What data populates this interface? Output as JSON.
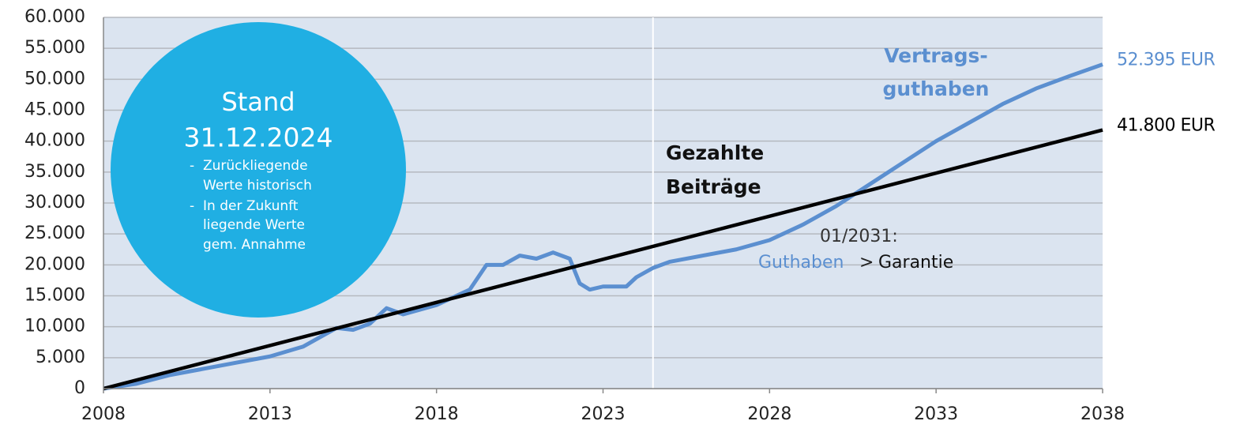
{
  "chart_data": {
    "type": "line",
    "series": [
      {
        "name": "Vertragsguthaben",
        "color": "#5b8fd0",
        "x": [
          2008,
          2009,
          2010,
          2011,
          2012,
          2013,
          2014,
          2015,
          2015.5,
          2016,
          2016.5,
          2017,
          2018,
          2019,
          2019.5,
          2020,
          2020.5,
          2021,
          2021.5,
          2022,
          2022.3,
          2022.6,
          2023,
          2023.7,
          2024,
          2024.5,
          2025,
          2026,
          2027,
          2028,
          2029,
          2030,
          2031,
          2032,
          2033,
          2034,
          2035,
          2036,
          2037,
          2038
        ],
        "values": [
          0,
          800,
          2200,
          3200,
          4200,
          5200,
          6800,
          9800,
          9500,
          10500,
          13000,
          12000,
          13500,
          16000,
          20000,
          20000,
          21500,
          21000,
          22000,
          21000,
          17000,
          16000,
          16500,
          16500,
          18000,
          19500,
          20500,
          21500,
          22500,
          24000,
          26500,
          29500,
          33000,
          36500,
          40000,
          43000,
          46000,
          48500,
          50500,
          52395
        ],
        "value_labels": [
          null,
          null,
          null,
          null,
          null,
          null,
          null,
          null,
          null,
          null,
          null,
          null,
          null,
          null,
          null,
          null,
          null,
          null,
          null,
          null,
          null,
          null,
          null,
          null,
          null,
          null,
          null,
          null,
          null,
          null,
          null,
          null,
          null,
          null,
          null,
          null,
          null,
          null,
          null,
          "52.395 EUR"
        ]
      },
      {
        "name": "Gezahlte Beiträge",
        "color": "#000000",
        "x": [
          2008,
          2038
        ],
        "values": [
          0,
          41800
        ],
        "value_labels": [
          null,
          "41.800 EUR"
        ]
      }
    ],
    "xlim": [
      2008,
      2038
    ],
    "xticks": [
      2008,
      2013,
      2018,
      2023,
      2028,
      2033,
      2038
    ],
    "ylim": [
      0,
      60000
    ],
    "yticks": [
      {
        "value": 0,
        "label": "0"
      },
      {
        "value": 5000,
        "label": "5.000"
      },
      {
        "value": 10000,
        "label": "10.000"
      },
      {
        "value": 15000,
        "label": "15.000"
      },
      {
        "value": 20000,
        "label": "20.000"
      },
      {
        "value": 25000,
        "label": "25.000"
      },
      {
        "value": 30000,
        "label": "30.000"
      },
      {
        "value": 35000,
        "label": "35.000"
      },
      {
        "value": 40000,
        "label": "40.000"
      },
      {
        "value": 45000,
        "label": "45.000"
      },
      {
        "value": 50000,
        "label": "50.000"
      },
      {
        "value": 55000,
        "label": "55.000"
      },
      {
        "value": 60000,
        "label": "60.000"
      }
    ],
    "grid": true,
    "vline": 2024.5,
    "annotations": {
      "stand": {
        "title": "Stand",
        "date": "31.12.2024",
        "notes": [
          [
            "Zurückliegende",
            "Werte historisch"
          ],
          [
            "In der Zukunft",
            "liegende Werte",
            "gem. Annahme"
          ]
        ]
      },
      "blue_label": [
        "Vertrags-",
        "guthaben"
      ],
      "black_label": [
        "Gezahlte",
        "Beiträge"
      ],
      "crossover": {
        "date": "01/2031:",
        "left": "Guthaben",
        "sign": ">",
        "right": "Garantie"
      }
    }
  }
}
